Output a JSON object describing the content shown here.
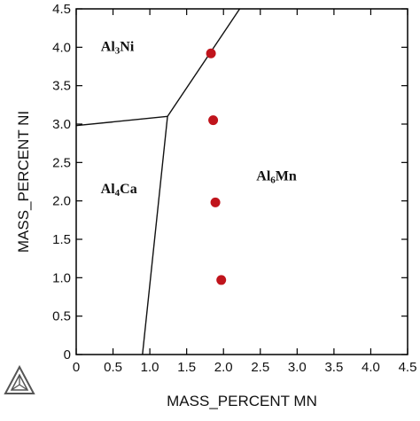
{
  "chart_data": {
    "type": "scatter",
    "xlabel": "MASS_PERCENT MN",
    "ylabel": "MASS_PERCENT NI",
    "xlim": [
      0,
      4.5
    ],
    "ylim": [
      0,
      4.5
    ],
    "x_ticks": [
      "0",
      "0.5",
      "1.0",
      "1.5",
      "2.0",
      "2.5",
      "3.0",
      "3.5",
      "4.0",
      "4.5"
    ],
    "y_ticks": [
      "0",
      "0.5",
      "1.0",
      "1.5",
      "2.0",
      "2.5",
      "3.0",
      "3.5",
      "4.0",
      "4.5"
    ],
    "grid": false,
    "series": [
      {
        "color": "#c0141c",
        "points": [
          {
            "x": 1.83,
            "y": 3.92
          },
          {
            "x": 1.86,
            "y": 3.05
          },
          {
            "x": 1.89,
            "y": 1.98
          },
          {
            "x": 1.97,
            "y": 0.97
          }
        ]
      }
    ],
    "phase_boundaries": [
      [
        {
          "x": 0,
          "y": 2.98
        },
        {
          "x": 1.24,
          "y": 3.1
        }
      ],
      [
        {
          "x": 1.24,
          "y": 3.1
        },
        {
          "x": 2.22,
          "y": 4.5
        }
      ],
      [
        {
          "x": 1.24,
          "y": 3.1
        },
        {
          "x": 0.9,
          "y": 0
        }
      ]
    ],
    "regions": [
      {
        "main": "Al",
        "sub": "3",
        "rest": "Ni",
        "x": 0.56,
        "y": 3.95
      },
      {
        "main": "Al",
        "sub": "4",
        "rest": "Ca",
        "x": 0.58,
        "y": 2.1
      },
      {
        "main": "Al",
        "sub": "6",
        "rest": "Mn",
        "x": 2.72,
        "y": 2.27
      }
    ],
    "logo_icon": "thermo-calc-triangle-icon"
  }
}
